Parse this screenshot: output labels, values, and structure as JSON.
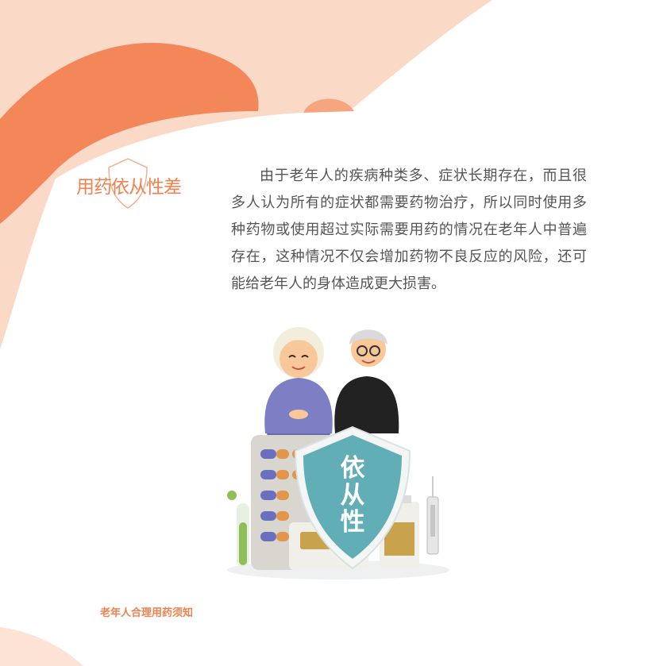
{
  "section_title": "用药依从性差",
  "paragraph": "由于老年人的疾病种类多、症状长期存在，而且很多人认为所有的症状都需要药物治疗，所以同时使用多种药物或使用超过实际需要用药的情况在老年人中普遍存在，这种情况不仅会增加药物不良反应的风险，还可能给老年人的身体造成更大损害。",
  "shield_label": [
    "依",
    "从",
    "性"
  ],
  "footer": "老年人合理用药须知",
  "colors": {
    "accent": "#ee8250",
    "peach": "#f9d4c1",
    "orange": "#f4875a",
    "shield": "#62aeb7"
  }
}
